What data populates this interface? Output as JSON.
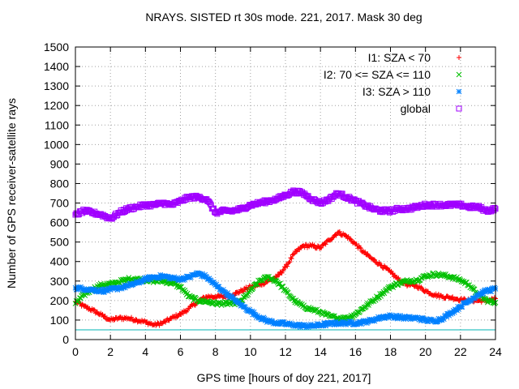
{
  "chart_data": {
    "type": "scatter",
    "title": "NRAYS. SISTED rt 30s mode. 221, 2017. Mask 30 deg",
    "xlabel": "GPS time [hours of doy 221, 2017]",
    "ylabel": "Number of GPS receiver-satellite rays",
    "xlim": [
      0,
      24
    ],
    "ylim": [
      0,
      1500
    ],
    "xticks": [
      0,
      2,
      4,
      6,
      8,
      10,
      12,
      14,
      16,
      18,
      20,
      22,
      24
    ],
    "yticks": [
      0,
      100,
      200,
      300,
      400,
      500,
      600,
      700,
      800,
      900,
      1000,
      1100,
      1200,
      1300,
      1400,
      1500
    ],
    "grid": true,
    "legend_position": "top-right",
    "reference_line": {
      "y": 50,
      "color": "#00b4b4"
    },
    "series": [
      {
        "name": "I1: SZA < 70",
        "marker": "+",
        "color": "#ff0000",
        "x": [
          0,
          0.5,
          1,
          1.5,
          2,
          2.5,
          3,
          3.5,
          4,
          4.5,
          5,
          5.5,
          6,
          6.5,
          7,
          7.5,
          8,
          8.5,
          9,
          9.5,
          10,
          10.5,
          11,
          11.5,
          12,
          12.5,
          13,
          13.5,
          14,
          14.5,
          15,
          15.5,
          16,
          16.5,
          17,
          17.5,
          18,
          18.5,
          19,
          19.5,
          20,
          20.5,
          21,
          21.5,
          22,
          22.5,
          23,
          23.5,
          24
        ],
        "values": [
          195,
          170,
          150,
          125,
          100,
          110,
          110,
          100,
          90,
          75,
          85,
          110,
          130,
          160,
          195,
          220,
          220,
          220,
          230,
          250,
          270,
          280,
          300,
          320,
          370,
          440,
          480,
          480,
          470,
          510,
          550,
          530,
          490,
          445,
          410,
          380,
          345,
          305,
          280,
          275,
          250,
          230,
          220,
          215,
          205,
          200,
          200,
          200,
          210
        ]
      },
      {
        "name": "I2: 70 <= SZA <= 110",
        "marker": "x",
        "color": "#00c000",
        "x": [
          0,
          0.5,
          1,
          1.5,
          2,
          2.5,
          3,
          3.5,
          4,
          4.5,
          5,
          5.5,
          6,
          6.5,
          7,
          7.5,
          8,
          8.5,
          9,
          9.5,
          10,
          10.5,
          11,
          11.5,
          12,
          12.5,
          13,
          13.5,
          14,
          14.5,
          15,
          15.5,
          16,
          16.5,
          17,
          17.5,
          18,
          18.5,
          19,
          19.5,
          20,
          20.5,
          21,
          21.5,
          22,
          22.5,
          23,
          23.5,
          24
        ],
        "values": [
          185,
          230,
          260,
          280,
          285,
          295,
          310,
          310,
          305,
          300,
          300,
          290,
          270,
          220,
          200,
          195,
          185,
          185,
          185,
          200,
          250,
          300,
          320,
          300,
          250,
          200,
          170,
          155,
          140,
          120,
          110,
          110,
          130,
          165,
          200,
          235,
          270,
          290,
          300,
          305,
          325,
          335,
          330,
          320,
          305,
          280,
          230,
          200,
          190
        ]
      },
      {
        "name": "I3: SZA > 110",
        "marker": "*",
        "color": "#0080ff",
        "x": [
          0,
          0.5,
          1,
          1.5,
          2,
          2.5,
          3,
          3.5,
          4,
          4.5,
          5,
          5.5,
          6,
          6.5,
          7,
          7.5,
          8,
          8.5,
          9,
          9.5,
          10,
          10.5,
          11,
          11.5,
          12,
          12.5,
          13,
          13.5,
          14,
          14.5,
          15,
          15.5,
          16,
          16.5,
          17,
          17.5,
          18,
          18.5,
          19,
          19.5,
          20,
          20.5,
          21,
          21.5,
          22,
          22.5,
          23,
          23.5,
          24
        ],
        "values": [
          265,
          260,
          255,
          250,
          255,
          265,
          275,
          290,
          310,
          320,
          325,
          315,
          310,
          320,
          340,
          320,
          280,
          245,
          210,
          175,
          145,
          115,
          95,
          85,
          80,
          75,
          70,
          70,
          75,
          80,
          85,
          85,
          85,
          90,
          100,
          115,
          120,
          115,
          110,
          110,
          100,
          95,
          110,
          140,
          170,
          200,
          230,
          250,
          260
        ]
      },
      {
        "name": "global",
        "marker": "square",
        "color": "#a000ff",
        "x": [
          0,
          0.5,
          1,
          1.5,
          2,
          2.5,
          3,
          3.5,
          4,
          4.5,
          5,
          5.5,
          6,
          6.5,
          7,
          7.5,
          8,
          8.5,
          9,
          9.5,
          10,
          10.5,
          11,
          11.5,
          12,
          12.5,
          13,
          13.5,
          14,
          14.5,
          15,
          15.5,
          16,
          16.5,
          17,
          17.5,
          18,
          18.5,
          19,
          19.5,
          20,
          20.5,
          21,
          21.5,
          22,
          22.5,
          23,
          23.5,
          24
        ],
        "values": [
          640,
          660,
          650,
          640,
          620,
          650,
          670,
          680,
          690,
          690,
          700,
          690,
          710,
          730,
          730,
          720,
          650,
          660,
          660,
          670,
          690,
          700,
          710,
          720,
          740,
          760,
          750,
          720,
          700,
          720,
          750,
          730,
          710,
          690,
          670,
          660,
          660,
          670,
          670,
          680,
          690,
          690,
          690,
          690,
          690,
          680,
          680,
          660,
          670
        ]
      }
    ]
  }
}
